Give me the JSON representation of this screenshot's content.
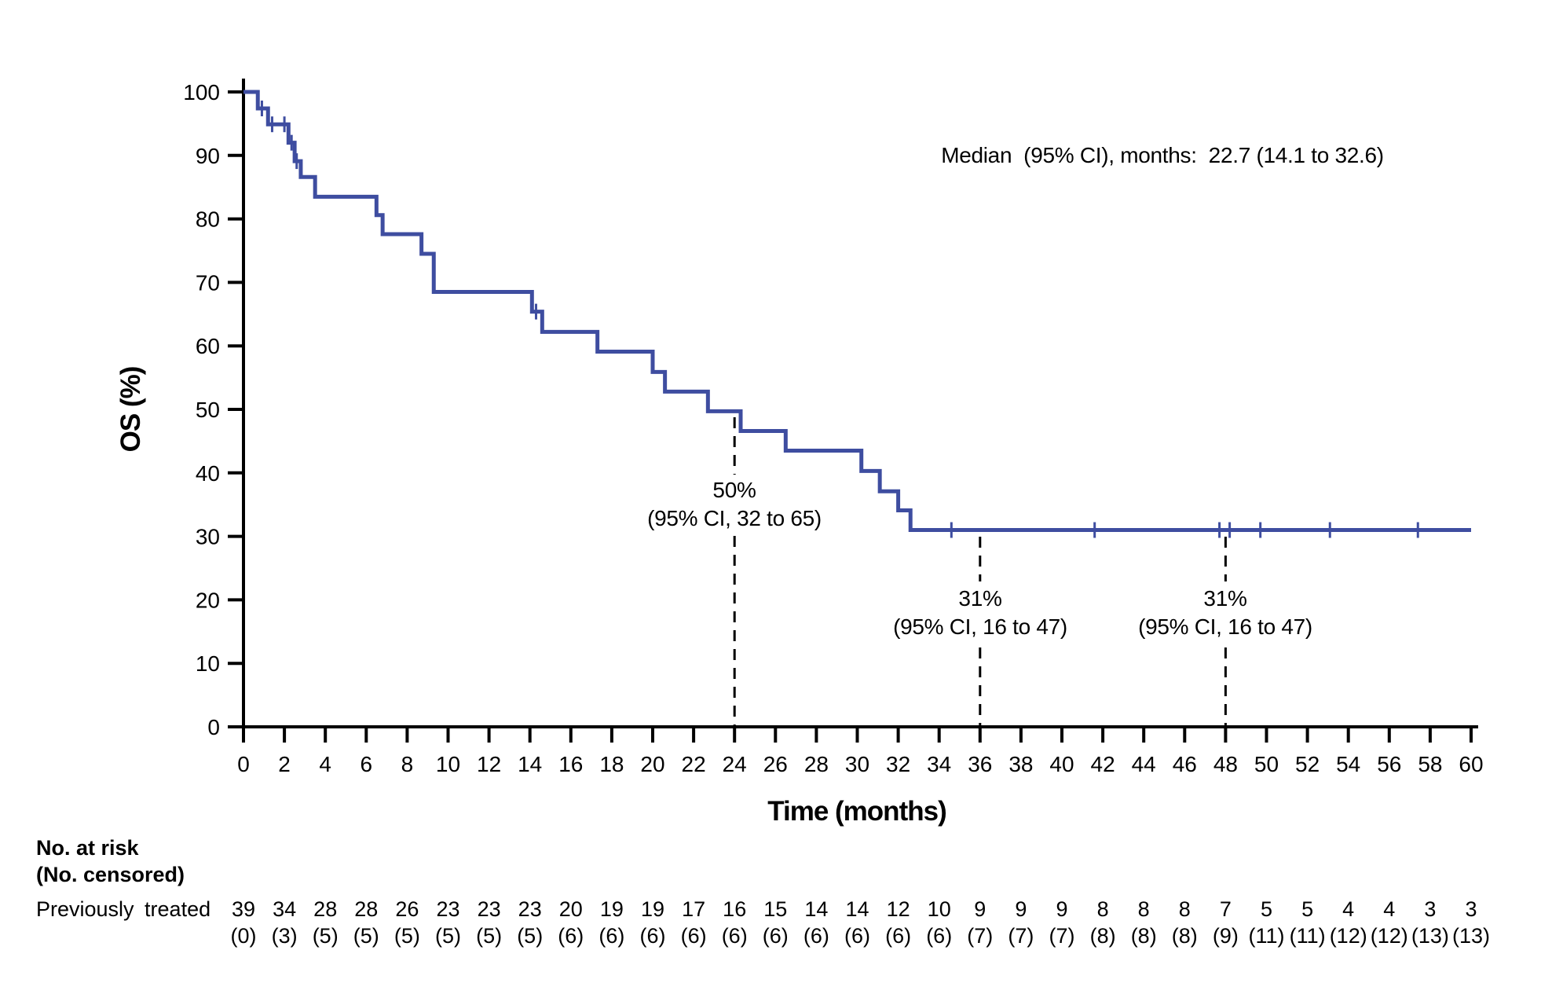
{
  "figure": {
    "background": "#ffffff",
    "curve_color": "#3E4DA0",
    "axis_color": "#000000",
    "dashed_line_color": "#000000"
  },
  "chart_data": {
    "type": "line",
    "subtype": "kaplan-meier-step-curve",
    "title": "",
    "xlabel": "Time (months)",
    "ylabel": "OS (%)",
    "xlim": [
      0,
      60
    ],
    "ylim": [
      0,
      100
    ],
    "grid": "off",
    "x_ticks": [
      0,
      2,
      4,
      6,
      8,
      10,
      12,
      14,
      16,
      18,
      20,
      22,
      24,
      26,
      28,
      30,
      32,
      34,
      36,
      38,
      40,
      42,
      44,
      46,
      48,
      50,
      52,
      54,
      56,
      58,
      60
    ],
    "y_ticks": [
      0,
      10,
      20,
      30,
      40,
      50,
      60,
      70,
      80,
      90,
      100
    ],
    "annotation": "Median  (95% CI), months:  22.7 (14.1 to 32.6)",
    "series": [
      {
        "name": "Previously treated",
        "color": "#3E4DA0",
        "steps": [
          [
            0,
            100
          ],
          [
            0.7,
            97.4
          ],
          [
            1.2,
            94.9
          ],
          [
            2.2,
            92.0
          ],
          [
            2.5,
            89.1
          ],
          [
            2.8,
            86.6
          ],
          [
            3.5,
            83.5
          ],
          [
            6.5,
            80.6
          ],
          [
            6.8,
            77.6
          ],
          [
            8.7,
            74.5
          ],
          [
            9.3,
            68.5
          ],
          [
            14.1,
            65.4
          ],
          [
            14.6,
            62.2
          ],
          [
            17.3,
            59.1
          ],
          [
            20.0,
            55.9
          ],
          [
            20.6,
            52.8
          ],
          [
            22.7,
            49.7
          ],
          [
            24.3,
            46.6
          ],
          [
            26.5,
            43.5
          ],
          [
            30.2,
            40.3
          ],
          [
            31.1,
            37.1
          ],
          [
            32.0,
            34.1
          ],
          [
            32.6,
            31.0
          ]
        ],
        "end_time": 60,
        "censor_marks": [
          [
            0.9,
            97.4
          ],
          [
            1.4,
            94.9
          ],
          [
            2.0,
            94.9
          ],
          [
            2.35,
            92.0
          ],
          [
            2.6,
            89.1
          ],
          [
            14.3,
            65.4
          ],
          [
            34.6,
            31.0
          ],
          [
            41.6,
            31.0
          ],
          [
            47.7,
            31.0
          ],
          [
            48.2,
            31.0
          ],
          [
            49.7,
            31.0
          ],
          [
            53.1,
            31.0
          ],
          [
            57.4,
            31.0
          ]
        ]
      }
    ],
    "reference_lines": [
      {
        "x": 24,
        "style": "dashed",
        "label_lines": [
          "50%",
          "(95% CI, 32 to 65)"
        ]
      },
      {
        "x": 36,
        "style": "dashed",
        "label_lines": [
          "31%",
          "(95% CI, 16 to 47)"
        ]
      },
      {
        "x": 48,
        "style": "dashed",
        "label_lines": [
          "31%",
          "(95% CI, 16 to 47)"
        ]
      }
    ]
  },
  "risk_table": {
    "header_line1": "No. at risk",
    "header_line2": "(No. censored)",
    "row_label": "Previously treated",
    "months": [
      0,
      2,
      4,
      6,
      8,
      10,
      12,
      14,
      16,
      18,
      20,
      22,
      24,
      26,
      28,
      30,
      32,
      34,
      36,
      38,
      40,
      42,
      44,
      46,
      48,
      50,
      52,
      54,
      56,
      58,
      60
    ],
    "at_risk": [
      39,
      34,
      28,
      28,
      26,
      23,
      23,
      23,
      20,
      19,
      19,
      17,
      16,
      15,
      14,
      14,
      12,
      10,
      9,
      9,
      9,
      8,
      8,
      8,
      7,
      5,
      5,
      4,
      4,
      3,
      3
    ],
    "censored": [
      "(0)",
      "(3)",
      "(5)",
      "(5)",
      "(5)",
      "(5)",
      "(5)",
      "(5)",
      "(6)",
      "(6)",
      "(6)",
      "(6)",
      "(6)",
      "(6)",
      "(6)",
      "(6)",
      "(6)",
      "(6)",
      "(7)",
      "(7)",
      "(7)",
      "(8)",
      "(8)",
      "(8)",
      "(9)",
      "(11)",
      "(11)",
      "(12)",
      "(12)",
      "(13)",
      "(13)"
    ]
  }
}
